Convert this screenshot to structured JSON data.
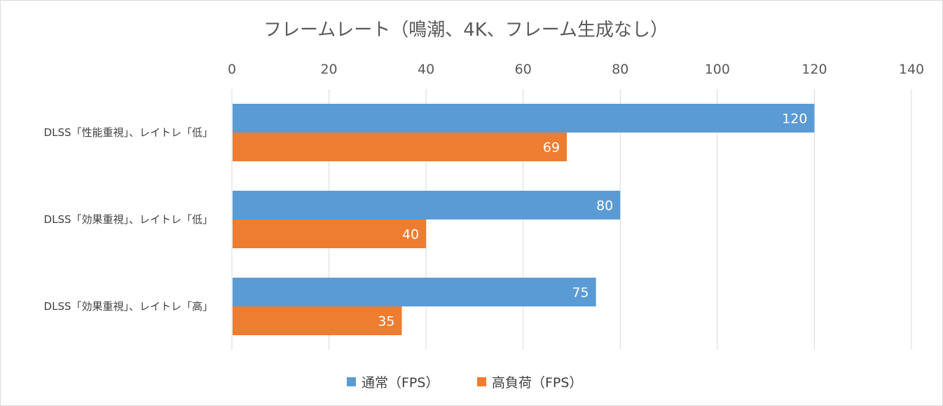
{
  "chart_data": {
    "type": "bar",
    "orientation": "horizontal",
    "title": "フレームレート（鳴潮、4K、フレーム生成なし）",
    "categories": [
      "DLSS「性能重視」、レイトレ「低」",
      "DLSS「効果重視」、レイトレ「低」",
      "DLSS「効果重視」、レイトレ「高」"
    ],
    "series": [
      {
        "name": "通常（FPS）",
        "values": [
          120,
          80,
          75
        ],
        "color": "#5b9bd5"
      },
      {
        "name": "高負荷（FPS）",
        "values": [
          69,
          40,
          35
        ],
        "color": "#ed7d31"
      }
    ],
    "xlim": [
      0,
      140
    ],
    "x_ticks": [
      "0",
      "20",
      "40",
      "60",
      "80",
      "100",
      "120",
      "140"
    ],
    "axis_position": "top",
    "grid": true,
    "data_labels": true,
    "legend_position": "bottom",
    "gridline_color": "#d9d9d9",
    "text_color": "#595959"
  }
}
